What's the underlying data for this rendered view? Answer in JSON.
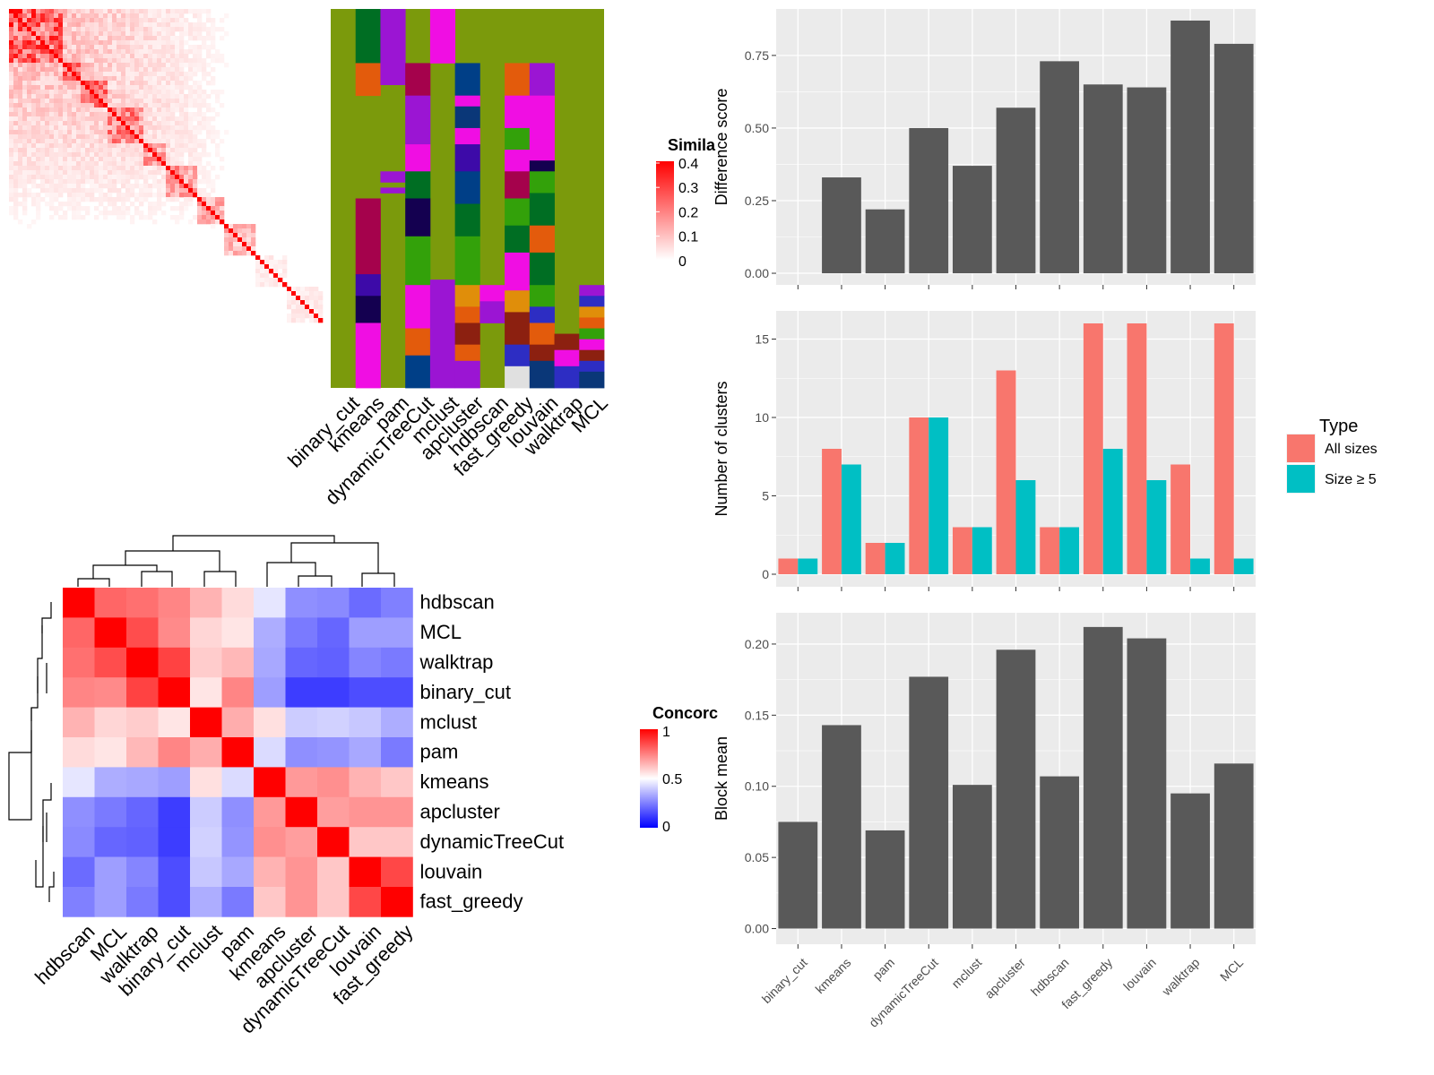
{
  "methods": [
    "binary_cut",
    "kmeans",
    "pam",
    "dynamicTreeCut",
    "mclust",
    "apcluster",
    "hdbscan",
    "fast_greedy",
    "louvain",
    "walktrap",
    "MCL"
  ],
  "colors": {
    "panel_bg": "#ebebeb",
    "bar_gray": "#595959",
    "all_sizes": "#f8766d",
    "size_ge5": "#00bfc4",
    "similarity_high": "#ff0000",
    "concordance_high": "#ff0000",
    "concordance_mid": "#ffffff",
    "concordance_low": "#0000ff",
    "cluster_palette": [
      "#7b9a0c",
      "#006e23",
      "#9b15d3",
      "#e0e0e0",
      "#e35b0c",
      "#a5024c",
      "#f00ee3",
      "#003f87",
      "#0a3778",
      "#3d0aa8",
      "#140050",
      "#33a10a",
      "#e08e0a",
      "#8c2010",
      "#2d2dc3"
    ]
  },
  "similarity_legend": {
    "title": "Simila",
    "ticks": [
      "0.4",
      "0.3",
      "0.2",
      "0.1",
      "0"
    ]
  },
  "concordance_legend": {
    "title": "Concorc",
    "ticks": [
      "1",
      "0.5",
      "0"
    ]
  },
  "cluster_legend": {
    "title": "Type",
    "entries": [
      "All sizes",
      "Size ≥ 5"
    ]
  },
  "chart_data": [
    {
      "type": "heatmap",
      "name": "term-similarity-matrix",
      "n_terms": 70,
      "value_range": [
        0,
        0.4
      ],
      "column_labels": [
        "binary_cut",
        "kmeans",
        "pam",
        "dynamicTreeCut",
        "mclust",
        "apcluster",
        "hdbscan",
        "fast_greedy",
        "louvain",
        "walktrap",
        "MCL"
      ]
    },
    {
      "type": "heatmap",
      "name": "concordance-matrix",
      "row_labels": [
        "hdbscan",
        "MCL",
        "walktrap",
        "binary_cut",
        "mclust",
        "pam",
        "kmeans",
        "apcluster",
        "dynamicTreeCut",
        "louvain",
        "fast_greedy"
      ],
      "column_labels": [
        "hdbscan",
        "MCL",
        "walktrap",
        "binary_cut",
        "mclust",
        "pam",
        "kmeans",
        "apcluster",
        "dynamicTreeCut",
        "louvain",
        "fast_greedy"
      ],
      "values": [
        [
          1.0,
          0.8,
          0.78,
          0.74,
          0.65,
          0.57,
          0.45,
          0.28,
          0.27,
          0.21,
          0.25
        ],
        [
          0.8,
          1.0,
          0.85,
          0.73,
          0.58,
          0.55,
          0.34,
          0.24,
          0.2,
          0.31,
          0.31
        ],
        [
          0.78,
          0.85,
          1.0,
          0.87,
          0.6,
          0.64,
          0.33,
          0.2,
          0.19,
          0.26,
          0.24
        ],
        [
          0.74,
          0.73,
          0.87,
          1.0,
          0.55,
          0.74,
          0.31,
          0.12,
          0.12,
          0.15,
          0.15
        ],
        [
          0.65,
          0.58,
          0.6,
          0.55,
          1.0,
          0.66,
          0.56,
          0.4,
          0.41,
          0.39,
          0.34
        ],
        [
          0.57,
          0.55,
          0.64,
          0.74,
          0.66,
          1.0,
          0.43,
          0.28,
          0.29,
          0.33,
          0.24
        ],
        [
          0.45,
          0.34,
          0.33,
          0.31,
          0.56,
          0.43,
          1.0,
          0.7,
          0.72,
          0.65,
          0.61
        ],
        [
          0.28,
          0.24,
          0.2,
          0.12,
          0.4,
          0.28,
          0.7,
          1.0,
          0.69,
          0.71,
          0.71
        ],
        [
          0.27,
          0.2,
          0.19,
          0.12,
          0.41,
          0.29,
          0.72,
          0.69,
          1.0,
          0.61,
          0.61
        ],
        [
          0.21,
          0.31,
          0.26,
          0.15,
          0.39,
          0.33,
          0.65,
          0.71,
          0.61,
          1.0,
          0.86
        ],
        [
          0.25,
          0.31,
          0.24,
          0.15,
          0.34,
          0.24,
          0.61,
          0.71,
          0.61,
          0.86,
          1.0
        ]
      ],
      "value_range": [
        0,
        1
      ]
    },
    {
      "type": "bar",
      "name": "difference-score",
      "categories": [
        "binary_cut",
        "kmeans",
        "pam",
        "dynamicTreeCut",
        "mclust",
        "apcluster",
        "hdbscan",
        "fast_greedy",
        "louvain",
        "walktrap",
        "MCL"
      ],
      "values": [
        0,
        0.33,
        0.22,
        0.5,
        0.37,
        0.57,
        0.73,
        0.65,
        0.64,
        0.87,
        0.79
      ],
      "ylabel": "Difference score",
      "ylim": [
        -0.04,
        0.91
      ],
      "yticks": [
        0,
        0.25,
        0.5,
        0.75
      ],
      "ytick_labels": [
        "0.00",
        "0.25",
        "0.50",
        "0.75"
      ],
      "grid": true
    },
    {
      "type": "bar",
      "name": "number-of-clusters",
      "categories": [
        "binary_cut",
        "kmeans",
        "pam",
        "dynamicTreeCut",
        "mclust",
        "apcluster",
        "hdbscan",
        "fast_greedy",
        "louvain",
        "walktrap",
        "MCL"
      ],
      "series": [
        {
          "name": "All sizes",
          "values": [
            1,
            8,
            2,
            10,
            3,
            13,
            3,
            16,
            16,
            7,
            16
          ]
        },
        {
          "name": "Size ≥ 5",
          "values": [
            1,
            7,
            2,
            10,
            3,
            6,
            3,
            8,
            6,
            1,
            1
          ]
        }
      ],
      "ylabel": "Number of clusters",
      "ylim": [
        -0.8,
        16.8
      ],
      "yticks": [
        0,
        5,
        10,
        15
      ],
      "ytick_labels": [
        "0",
        "5",
        "10",
        "15"
      ],
      "legend": "right",
      "grid": true
    },
    {
      "type": "bar",
      "name": "block-mean",
      "categories": [
        "binary_cut",
        "kmeans",
        "pam",
        "dynamicTreeCut",
        "mclust",
        "apcluster",
        "hdbscan",
        "fast_greedy",
        "louvain",
        "walktrap",
        "MCL"
      ],
      "values": [
        0.075,
        0.143,
        0.069,
        0.177,
        0.101,
        0.196,
        0.107,
        0.212,
        0.204,
        0.095,
        0.116
      ],
      "ylabel": "Block mean",
      "ylim": [
        -0.011,
        0.222
      ],
      "yticks": [
        0,
        0.05,
        0.1,
        0.15,
        0.2
      ],
      "ytick_labels": [
        "0.00",
        "0.05",
        "0.10",
        "0.15",
        "0.20"
      ],
      "grid": true
    }
  ]
}
